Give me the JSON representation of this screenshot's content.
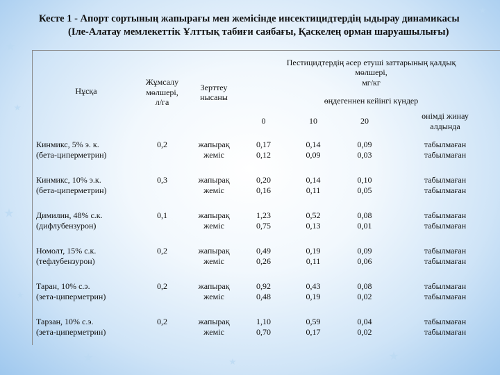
{
  "title": {
    "line1": "Кесте 1 - Апорт сортының жапырағы мен жемісінде инсектицидтердің ыдырау динамикасы",
    "line2": "(Іле-Алатау мемлекеттік Ұлттық табиғи саябағы, Қаскелең орман шаруашылығы)"
  },
  "headers": {
    "variant": "Нұсқа",
    "rate": [
      "Жұмсалу",
      "мөлшері,",
      "л/га"
    ],
    "object": [
      "Зерттеу",
      "нысаны"
    ],
    "residue": [
      "Пестицидтердің әсер етуші заттарының қалдық",
      "мөлшері,",
      "мг/кг"
    ],
    "days_after": "өңдегеннен кейінгі күндер",
    "day_0": "0",
    "day_10": "10",
    "day_20": "20",
    "before_harvest": [
      "өнімді жинау",
      "алдында"
    ]
  },
  "rows": [
    {
      "name": [
        "Кинмикс, 5% э. к.",
        "(бета-циперметрин)"
      ],
      "rate": "0,2",
      "obj": [
        "жапырақ",
        "жеміс"
      ],
      "d0": [
        "0,17",
        "0,12"
      ],
      "d10": [
        "0,14",
        "0,09"
      ],
      "d20": [
        "0,09",
        "0,03"
      ],
      "harvest": [
        "табылмаған",
        "табылмаған"
      ]
    },
    {
      "name": [
        "Кинмикс, 10% э.к.",
        "(бета-циперметрин)"
      ],
      "rate": "0,3",
      "obj": [
        "жапырақ",
        "жеміс"
      ],
      "d0": [
        "0,20",
        "0,16"
      ],
      "d10": [
        "0,14",
        "0,11"
      ],
      "d20": [
        "0,10",
        "0,05"
      ],
      "harvest": [
        "табылмаған",
        "табылмаған"
      ]
    },
    {
      "name": [
        "Димилин, 48% с.к.",
        "(дифлубензурон)"
      ],
      "rate": "0,1",
      "obj": [
        "жапырақ",
        "жеміс"
      ],
      "d0": [
        "1,23",
        "0,75"
      ],
      "d10": [
        "0,52",
        "0,13"
      ],
      "d20": [
        "0,08",
        "0,01"
      ],
      "harvest": [
        "табылмаған",
        "табылмаған"
      ]
    },
    {
      "name": [
        "Номолт, 15% с.к.",
        "(тефлубензурон)"
      ],
      "rate": "0,2",
      "obj": [
        "жапырақ",
        "жеміс"
      ],
      "d0": [
        "0,49",
        "0,26"
      ],
      "d10": [
        "0,19",
        "0,11"
      ],
      "d20": [
        "0,09",
        "0,06"
      ],
      "harvest": [
        "табылмаған",
        "табылмаған"
      ]
    },
    {
      "name": [
        "Таран, 10% с.э.",
        "(зета-циперметрин)"
      ],
      "rate": "0,2",
      "obj": [
        "жапырақ",
        "жеміс"
      ],
      "d0": [
        "0,92",
        "0,48"
      ],
      "d10": [
        "0,43",
        "0,19"
      ],
      "d20": [
        "0,08",
        "0,02"
      ],
      "harvest": [
        "табылмаған",
        "табылмаған"
      ]
    },
    {
      "name": [
        "Тарзан, 10% с.э.",
        "(зета-циперметрин)"
      ],
      "rate": "0,2",
      "obj": [
        "жапырақ",
        "жеміс"
      ],
      "d0": [
        "1,10",
        "0,70"
      ],
      "d10": [
        "0,59",
        "0,17"
      ],
      "d20": [
        "0,04",
        "0,02"
      ],
      "harvest": [
        "табылмаған",
        "табылмаған"
      ]
    }
  ]
}
